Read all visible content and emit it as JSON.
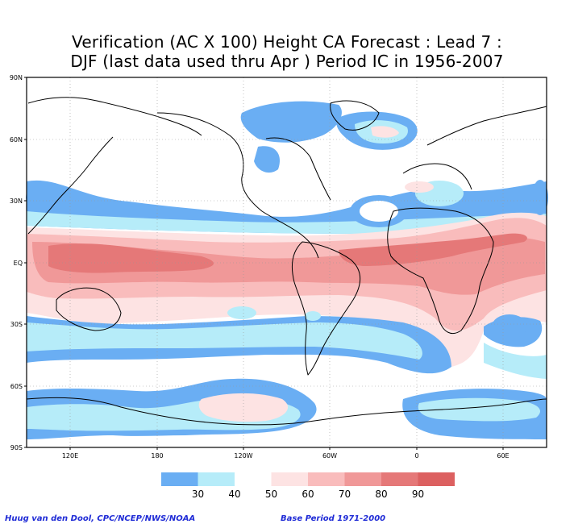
{
  "title_lines": [
    "Verification (AC X 100) Height CA Forecast : Lead 7 :",
    "DJF (last data used thru Apr ) Period IC in 1956-2007"
  ],
  "lat_labels": [
    "90N",
    "60N",
    "30N",
    "EQ",
    "30S",
    "60S",
    "90S"
  ],
  "lon_labels": [
    "120E",
    "180",
    "120W",
    "60W",
    "0",
    "60E"
  ],
  "colorbar": {
    "colors": [
      "#6aaef3",
      "#b6ecf9",
      "#ffffff",
      "#fde3e3",
      "#f9bcbc",
      "#f09898",
      "#e57878",
      "#dc6060"
    ],
    "labels": [
      "30",
      "40",
      "50",
      "60",
      "70",
      "80",
      "90"
    ]
  },
  "palette": {
    "blue_strong": "#6aaef3",
    "blue_light": "#b6ecf9",
    "pink_light": "#fde3e3",
    "pink": "#f9bcbc",
    "pink_strong": "#f09898",
    "red": "#e57878"
  },
  "credit_left": "Huug van den Dool, CPC/NCEP/NWS/NOAA",
  "credit_right": "Base Period 1971-2000"
}
